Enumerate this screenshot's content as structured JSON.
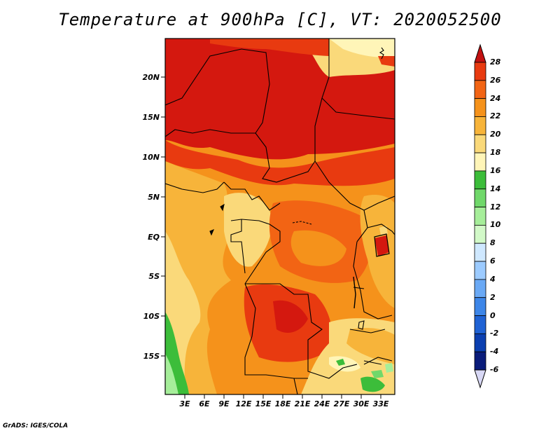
{
  "title": "Temperature at 900hPa [C], VT: 2020052500",
  "credit": "GrADS: IGES/COLA",
  "lat_labels": [
    "20N",
    "15N",
    "10N",
    "5N",
    "EQ",
    "5S",
    "10S",
    "15S"
  ],
  "lon_labels": [
    "3E",
    "6E",
    "9E",
    "12E",
    "15E",
    "18E",
    "21E",
    "24E",
    "27E",
    "30E",
    "33E"
  ],
  "colorbar": {
    "labels": [
      "28",
      "26",
      "24",
      "22",
      "20",
      "18",
      "16",
      "14",
      "12",
      "10",
      "8",
      "6",
      "4",
      "2",
      "0",
      "-2",
      "-4",
      "-6"
    ],
    "colors": [
      "#d4180f",
      "#e83a10",
      "#f26414",
      "#f5921b",
      "#f7b43a",
      "#fad97a",
      "#fff5b8",
      "#3cbd3a",
      "#70d86a",
      "#a6ee9a",
      "#d2f9c8",
      "#cfe8ff",
      "#9ccbff",
      "#6aa9f5",
      "#3d86e8",
      "#1f62d4",
      "#0b3fb0",
      "#0a1c7a"
    ],
    "under_color": "#d8d8f5",
    "over_color": "#c21111"
  }
}
